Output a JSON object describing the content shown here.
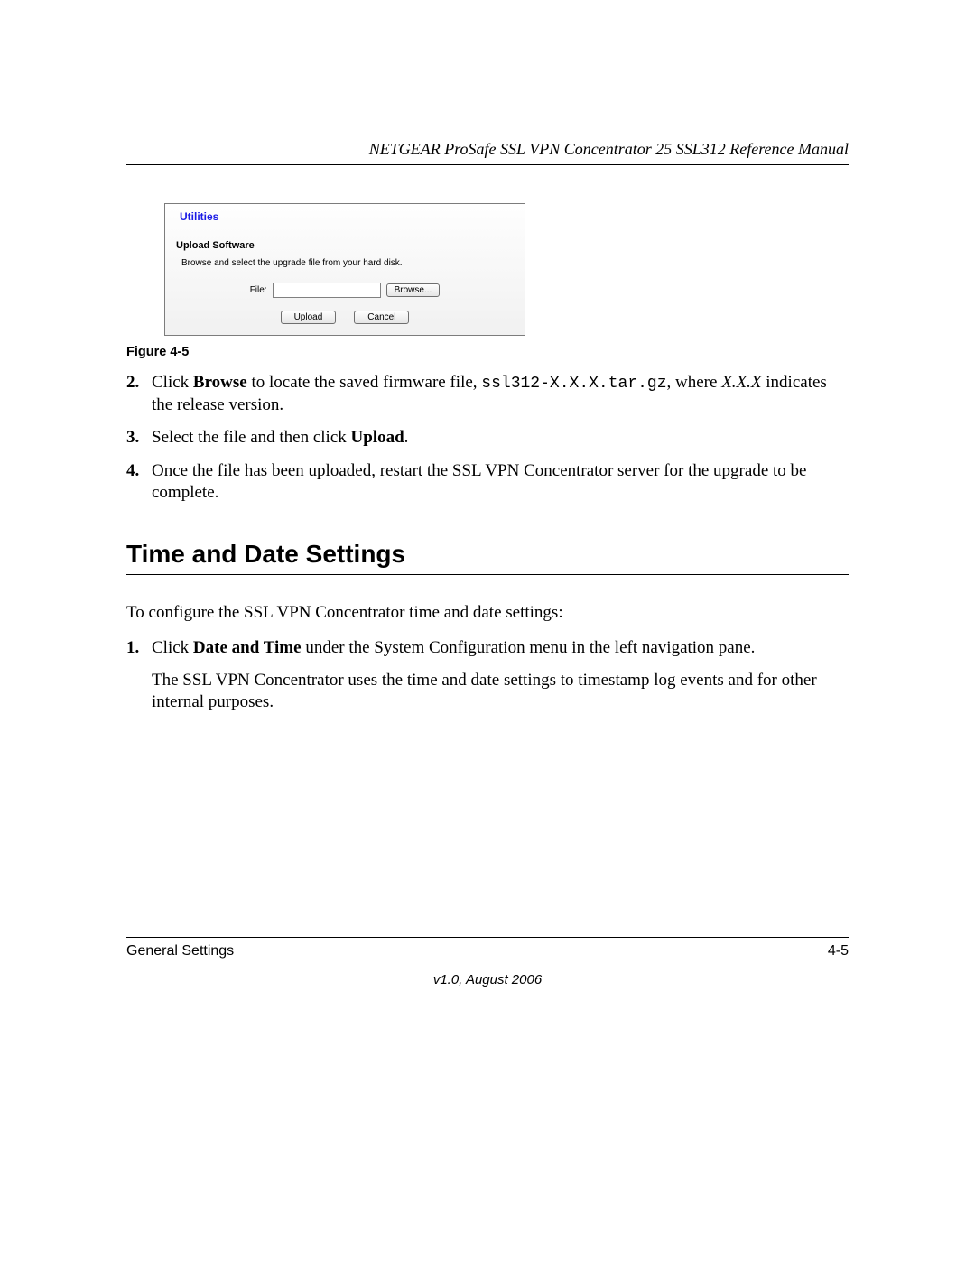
{
  "header": {
    "running_title": "NETGEAR ProSafe SSL VPN Concentrator 25 SSL312 Reference Manual"
  },
  "utilities_panel": {
    "title": "Utilities",
    "subtitle": "Upload Software",
    "description": "Browse and select the upgrade file from your hard disk.",
    "file_label": "File:",
    "file_value": "",
    "browse_label": "Browse...",
    "upload_label": "Upload",
    "cancel_label": "Cancel",
    "colors": {
      "title_color": "#1a1ae6",
      "border_color": "#7c7c7c",
      "bg_top": "#fefefe",
      "bg_bottom": "#f1f1f1"
    }
  },
  "figure_caption": "Figure 4-5",
  "steps_a": [
    {
      "num": "2.",
      "pre": "Click ",
      "bold1": "Browse",
      "mid1": " to locate the saved firmware file, ",
      "mono": "ssl312-X.X.X.tar.gz",
      "mid2": ", where ",
      "ital": "X.X.X",
      "post": " indicates the release version."
    },
    {
      "num": "3.",
      "pre": "Select the file and then click ",
      "bold1": "Upload",
      "post": "."
    },
    {
      "num": "4.",
      "pre": "Once the file has been uploaded, restart the SSL VPN Concentrator server for the upgrade to be complete."
    }
  ],
  "section_heading": "Time and Date Settings",
  "intro_para": "To configure the SSL VPN Concentrator time and date settings:",
  "steps_b": [
    {
      "num": "1.",
      "pre": "Click ",
      "bold1": "Date and Time",
      "post": " under the System Configuration menu in the left navigation pane."
    }
  ],
  "followup_para": "The SSL VPN Concentrator uses the time and date settings to timestamp log events and for other internal purposes.",
  "footer": {
    "left": "General Settings",
    "right": "4-5",
    "version": "v1.0, August 2006"
  }
}
